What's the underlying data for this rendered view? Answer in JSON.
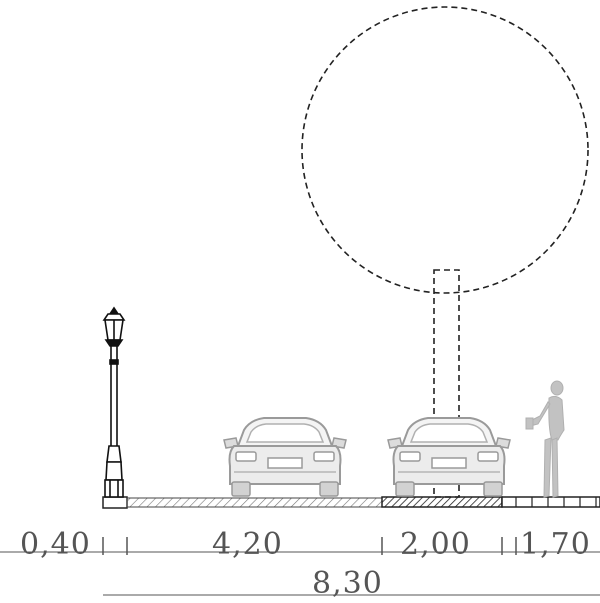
{
  "section": {
    "segments": [
      {
        "label": "0,40"
      },
      {
        "label": "4,20"
      },
      {
        "label": "2,00"
      },
      {
        "label": "1,70"
      }
    ],
    "total": "8,30"
  },
  "colors": {
    "line": "#222222",
    "car": "#9a9a9a",
    "person": "#bdbdbd",
    "dimension": "#555555"
  },
  "icons": [
    "street-lamp-icon",
    "tree-canopy-icon",
    "car-icon",
    "pedestrian-icon"
  ]
}
